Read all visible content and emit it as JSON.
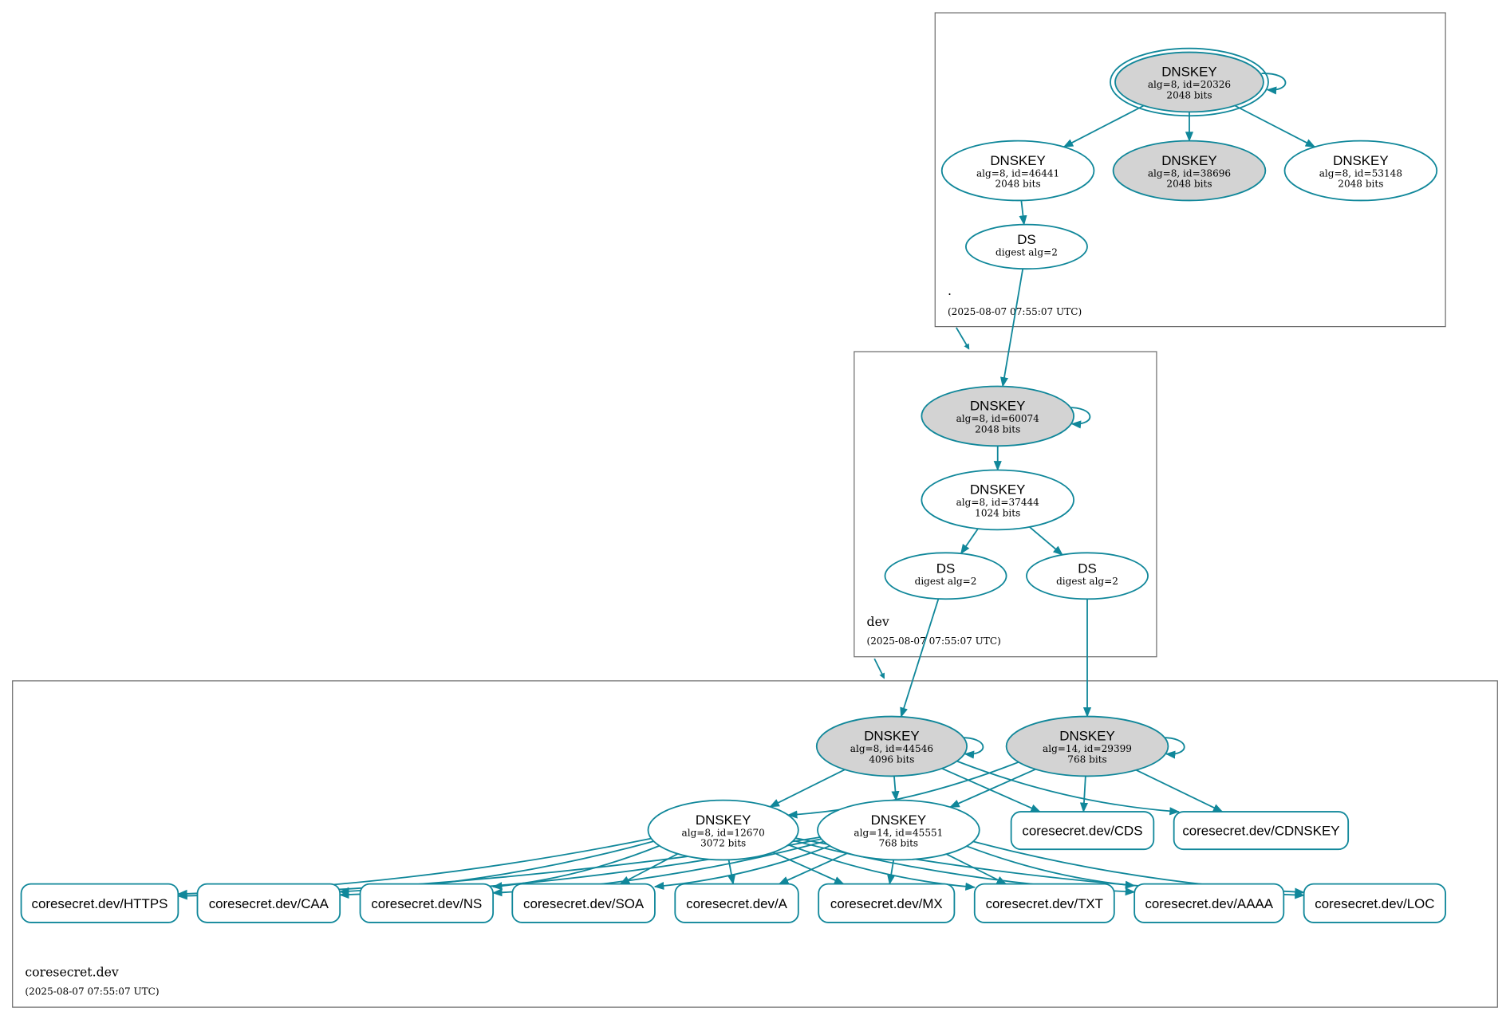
{
  "colors": {
    "edge": "#10879a",
    "secure_entry_fill": "#d3d3d3",
    "node_fill": "#ffffff",
    "border": "#6b6b6b"
  },
  "zones": {
    "root": {
      "name": ".",
      "timestamp": "(2025-08-07 07:55:07 UTC)"
    },
    "dev": {
      "name": "dev",
      "timestamp": "(2025-08-07 07:55:07 UTC)"
    },
    "coresecret": {
      "name": "coresecret.dev",
      "timestamp": "(2025-08-07 07:55:07 UTC)"
    }
  },
  "nodes": {
    "r_ksk": {
      "title": "DNSKEY",
      "line1": "alg=8, id=20326",
      "line2": "2048 bits",
      "filled": true,
      "trust_anchor": true
    },
    "r_zsk1": {
      "title": "DNSKEY",
      "line1": "alg=8, id=46441",
      "line2": "2048 bits",
      "filled": false
    },
    "r_k2": {
      "title": "DNSKEY",
      "line1": "alg=8, id=38696",
      "line2": "2048 bits",
      "filled": true
    },
    "r_zsk3": {
      "title": "DNSKEY",
      "line1": "alg=8, id=53148",
      "line2": "2048 bits",
      "filled": false
    },
    "r_ds": {
      "title": "DS",
      "line1": "digest alg=2",
      "filled": false
    },
    "d_ksk": {
      "title": "DNSKEY",
      "line1": "alg=8, id=60074",
      "line2": "2048 bits",
      "filled": true
    },
    "d_zsk": {
      "title": "DNSKEY",
      "line1": "alg=8, id=37444",
      "line2": "1024 bits",
      "filled": false
    },
    "d_ds1": {
      "title": "DS",
      "line1": "digest alg=2",
      "filled": false
    },
    "d_ds2": {
      "title": "DS",
      "line1": "digest alg=2",
      "filled": false
    },
    "c_ksk1": {
      "title": "DNSKEY",
      "line1": "alg=8, id=44546",
      "line2": "4096 bits",
      "filled": true
    },
    "c_ksk2": {
      "title": "DNSKEY",
      "line1": "alg=14, id=29399",
      "line2": "768 bits",
      "filled": true
    },
    "c_zsk1": {
      "title": "DNSKEY",
      "line1": "alg=8, id=12670",
      "line2": "3072 bits",
      "filled": false
    },
    "c_zsk2": {
      "title": "DNSKEY",
      "line1": "alg=14, id=45551",
      "line2": "768 bits",
      "filled": false
    }
  },
  "records": {
    "cds": "coresecret.dev/CDS",
    "cdnskey": "coresecret.dev/CDNSKEY",
    "https": "coresecret.dev/HTTPS",
    "caa": "coresecret.dev/CAA",
    "ns": "coresecret.dev/NS",
    "soa": "coresecret.dev/SOA",
    "a": "coresecret.dev/A",
    "mx": "coresecret.dev/MX",
    "txt": "coresecret.dev/TXT",
    "aaaa": "coresecret.dev/AAAA",
    "loc": "coresecret.dev/LOC"
  }
}
